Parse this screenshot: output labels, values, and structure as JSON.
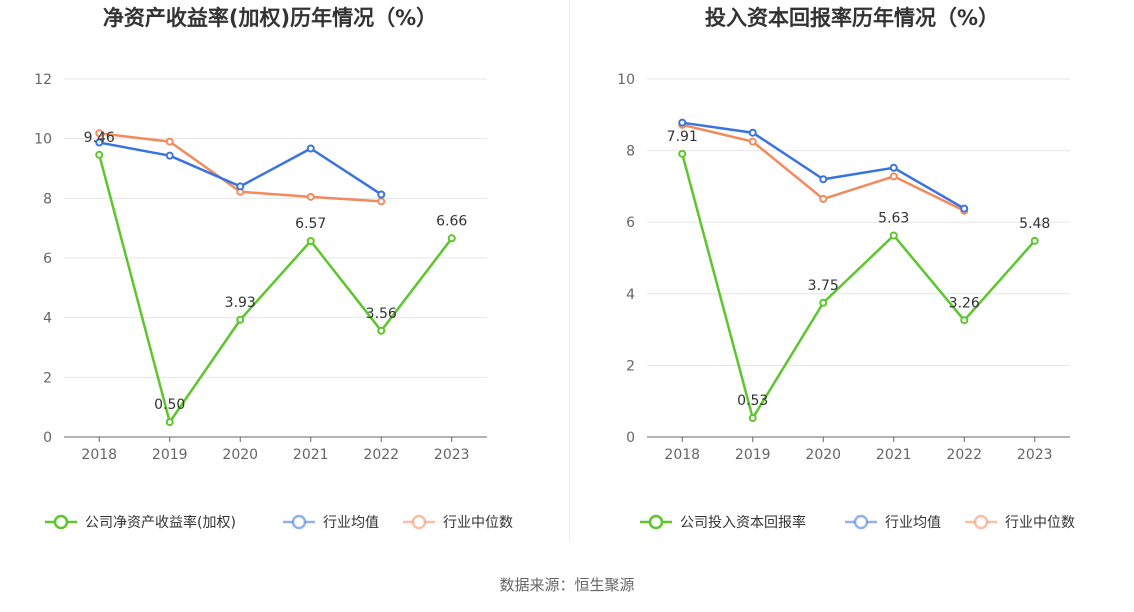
{
  "colors": {
    "company": "#5cc62c",
    "avg": "#3873e0",
    "median": "#f28a5c"
  },
  "chart_data": [
    {
      "type": "line",
      "title": "净资产收益率(加权)历年情况（%）",
      "categories": [
        "2018",
        "2019",
        "2020",
        "2021",
        "2022",
        "2023"
      ],
      "ylim": [
        0,
        12
      ],
      "yticks": [
        0,
        2,
        4,
        6,
        8,
        10,
        12
      ],
      "ytick_labels": [
        "0",
        "2",
        "4",
        "6",
        "8",
        "10",
        "12"
      ],
      "series": [
        {
          "key": "company",
          "name": "公司净资产收益率(加权)",
          "values": [
            9.46,
            0.5,
            3.93,
            6.57,
            3.56,
            6.66
          ],
          "labels": [
            "9.46",
            "0.50",
            "3.93",
            "6.57",
            "3.56",
            "6.66"
          ]
        },
        {
          "key": "avg",
          "name": "行业均值",
          "values": [
            9.87,
            9.43,
            8.4,
            9.67,
            8.13,
            null
          ]
        },
        {
          "key": "median",
          "name": "行业中位数",
          "values": [
            10.18,
            9.9,
            8.22,
            8.05,
            7.9,
            null
          ]
        }
      ]
    },
    {
      "type": "line",
      "title": "投入资本回报率历年情况（%）",
      "categories": [
        "2018",
        "2019",
        "2020",
        "2021",
        "2022",
        "2023"
      ],
      "ylim": [
        0,
        10
      ],
      "yticks": [
        0,
        2,
        4,
        6,
        8,
        10
      ],
      "ytick_labels": [
        "0",
        "2",
        "4",
        "6",
        "8",
        "10"
      ],
      "series": [
        {
          "key": "company",
          "name": "公司投入资本回报率",
          "values": [
            7.91,
            0.53,
            3.75,
            5.63,
            3.26,
            5.48
          ],
          "labels": [
            "7.91",
            "0.53",
            "3.75",
            "5.63",
            "3.26",
            "5.48"
          ]
        },
        {
          "key": "avg",
          "name": "行业均值",
          "values": [
            8.78,
            8.5,
            7.2,
            7.52,
            6.38,
            null
          ]
        },
        {
          "key": "median",
          "name": "行业中位数",
          "values": [
            8.72,
            8.25,
            6.65,
            7.28,
            6.32,
            null
          ]
        }
      ]
    }
  ],
  "footer": {
    "source": "数据来源：恒生聚源"
  }
}
